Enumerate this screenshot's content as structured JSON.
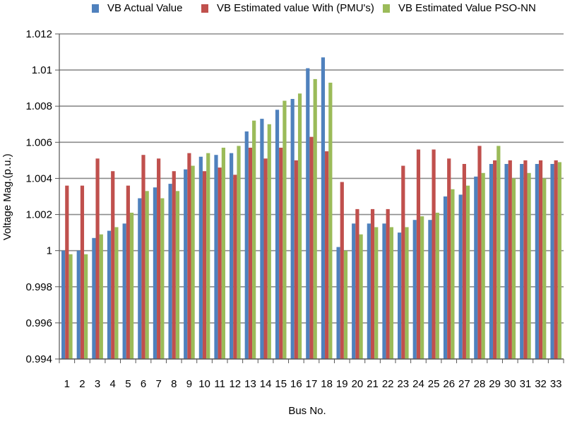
{
  "chart_data": {
    "type": "bar",
    "ylabel": "Voltage Mag.(p.u.)",
    "xlabel": "Bus No.",
    "ylim": [
      0.994,
      1.012
    ],
    "yticks": [
      "0.994",
      "0.996",
      "0.998",
      "1",
      "1.002",
      "1.004",
      "1.006",
      "1.008",
      "1.01",
      "1.012"
    ],
    "grid": true,
    "legend_position": "top",
    "categories": [
      "1",
      "2",
      "3",
      "4",
      "5",
      "6",
      "7",
      "8",
      "9",
      "10",
      "11",
      "12",
      "13",
      "14",
      "15",
      "16",
      "17",
      "18",
      "19",
      "20",
      "21",
      "22",
      "23",
      "24",
      "25",
      "26",
      "27",
      "28",
      "29",
      "30",
      "31",
      "32",
      "33"
    ],
    "series": [
      {
        "name": "VB Actual Value",
        "color": "#4f81bd",
        "values": [
          1.0,
          1.0,
          1.0007,
          1.0011,
          1.0015,
          1.0029,
          1.0035,
          1.0037,
          1.0045,
          1.0052,
          1.0053,
          1.0054,
          1.0066,
          1.0073,
          1.0078,
          1.0084,
          1.0101,
          1.0107,
          1.0002,
          1.0015,
          1.0015,
          1.0015,
          1.001,
          1.0017,
          1.0017,
          1.003,
          1.0031,
          1.0041,
          1.0048,
          1.0048,
          1.0048,
          1.0048,
          1.0048
        ]
      },
      {
        "name": "VB Estimated value With (PMU's)",
        "color": "#c0504d",
        "values": [
          1.0036,
          1.0036,
          1.0051,
          1.0044,
          1.0036,
          1.0053,
          1.0051,
          1.0044,
          1.0054,
          1.0044,
          1.0046,
          1.0042,
          1.0057,
          1.0051,
          1.0057,
          1.005,
          1.0063,
          1.0055,
          1.0038,
          1.0023,
          1.0023,
          1.0023,
          1.0047,
          1.0056,
          1.0056,
          1.0051,
          1.0048,
          1.0058,
          1.005,
          1.005,
          1.005,
          1.005,
          1.005
        ]
      },
      {
        "name": "VB Estimated Value PSO-NN",
        "color": "#9bbb59",
        "values": [
          0.9998,
          0.9998,
          1.0009,
          1.0013,
          1.0021,
          1.0033,
          1.0029,
          1.0033,
          1.0047,
          1.0054,
          1.0057,
          1.0058,
          1.0072,
          1.007,
          1.0083,
          1.0087,
          1.0095,
          1.0093,
          1.0,
          1.0009,
          1.0013,
          1.0013,
          1.0013,
          1.0019,
          1.0021,
          1.0034,
          1.0036,
          1.0043,
          1.0058,
          1.004,
          1.0043,
          1.004,
          1.0049
        ]
      }
    ]
  }
}
